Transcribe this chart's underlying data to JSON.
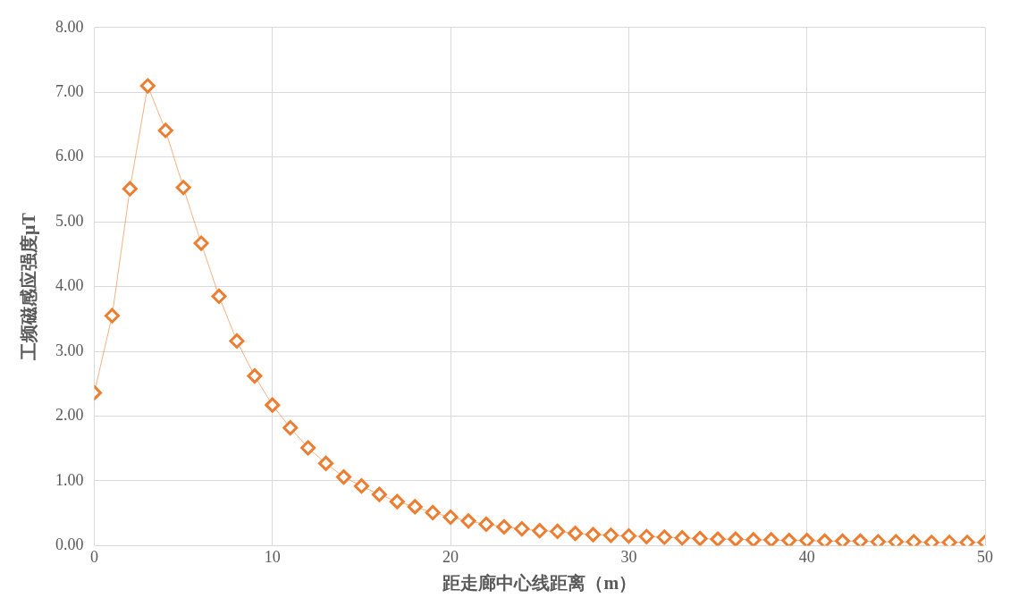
{
  "chart_data": {
    "type": "line",
    "xlabel": "距走廊中心线距离（m）",
    "ylabel": "工频磁感应强度μT",
    "x": [
      0,
      1,
      2,
      3,
      4,
      5,
      6,
      7,
      8,
      9,
      10,
      11,
      12,
      13,
      14,
      15,
      16,
      17,
      18,
      19,
      20,
      21,
      22,
      23,
      24,
      25,
      26,
      27,
      28,
      29,
      30,
      31,
      32,
      33,
      34,
      35,
      36,
      37,
      38,
      39,
      40,
      41,
      42,
      43,
      44,
      45,
      46,
      47,
      48,
      49,
      50
    ],
    "series": [
      {
        "color": "#ed7d31",
        "values": [
          2.36,
          3.55,
          5.51,
          7.1,
          6.41,
          5.53,
          4.67,
          3.85,
          3.16,
          2.62,
          2.17,
          1.82,
          1.51,
          1.27,
          1.06,
          0.92,
          0.79,
          0.68,
          0.6,
          0.51,
          0.44,
          0.38,
          0.33,
          0.29,
          0.26,
          0.23,
          0.22,
          0.19,
          0.17,
          0.16,
          0.15,
          0.14,
          0.13,
          0.12,
          0.11,
          0.1,
          0.1,
          0.09,
          0.09,
          0.08,
          0.08,
          0.07,
          0.07,
          0.07,
          0.06,
          0.06,
          0.06,
          0.05,
          0.05,
          0.05,
          0.05
        ]
      }
    ],
    "xlim": [
      0,
      50
    ],
    "xticks": [
      0,
      10,
      20,
      30,
      40,
      50
    ],
    "ylim": [
      0,
      8
    ],
    "yticks": [
      {
        "value": 0,
        "label": "0.00"
      },
      {
        "value": 1,
        "label": "1.00"
      },
      {
        "value": 2,
        "label": "2.00"
      },
      {
        "value": 3,
        "label": "3.00"
      },
      {
        "value": 4,
        "label": "4.00"
      },
      {
        "value": 5,
        "label": "5.00"
      },
      {
        "value": 6,
        "label": "6.00"
      },
      {
        "value": 7,
        "label": "7.00"
      },
      {
        "value": 8,
        "label": "8.00"
      }
    ],
    "grid": true,
    "legend": false,
    "marker": "diamond",
    "line_style": "solid"
  }
}
